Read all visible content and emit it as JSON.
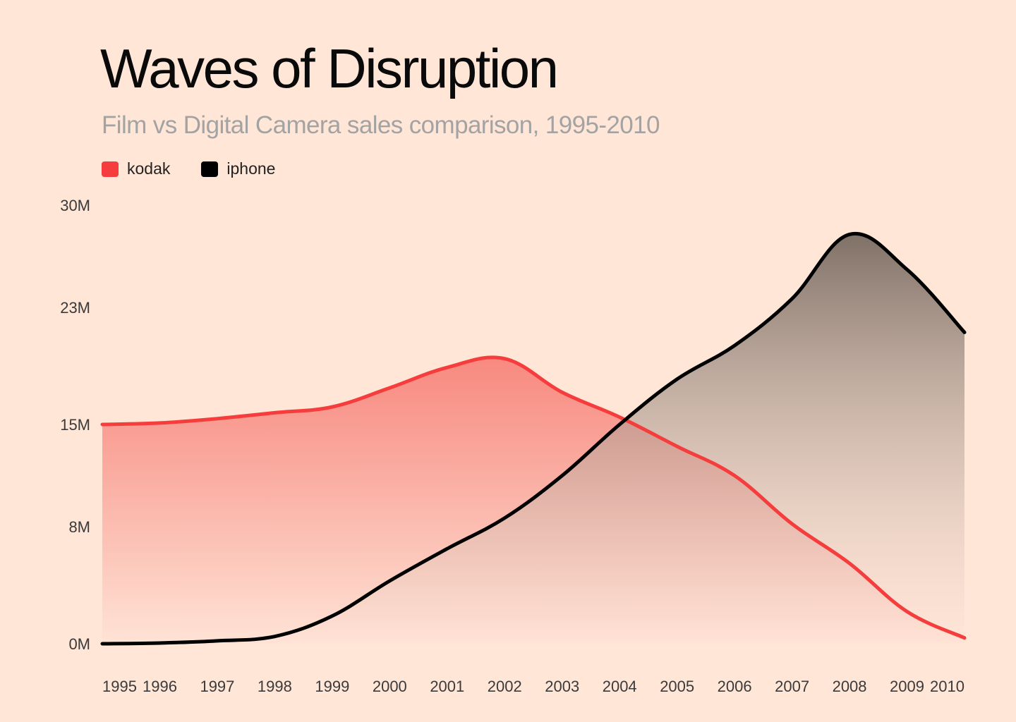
{
  "chart_data": {
    "type": "area",
    "title": "Waves of Disruption",
    "subtitle": "Film vs Digital Camera sales comparison, 1995-2010",
    "xlabel": "",
    "ylabel": "",
    "x": [
      1995,
      1996,
      1997,
      1998,
      1999,
      2000,
      2001,
      2002,
      2003,
      2004,
      2005,
      2006,
      2007,
      2008,
      2009,
      2010
    ],
    "x_tick_labels": [
      "1995",
      "1996",
      "1997",
      "1998",
      "1999",
      "2000",
      "2001",
      "2002",
      "2003",
      "2004",
      "2005",
      "2006",
      "2007",
      "2008",
      "2009",
      "2010"
    ],
    "y_tick_values": [
      0,
      8,
      15,
      23,
      30
    ],
    "y_tick_labels": [
      "0M",
      "8M",
      "15M",
      "23M",
      "30M"
    ],
    "ylim": [
      0,
      30
    ],
    "legend_position": "top-left",
    "grid": false,
    "series": [
      {
        "name": "kodak",
        "color": "#F53D3D",
        "values": [
          15.0,
          15.1,
          15.4,
          15.8,
          16.2,
          17.5,
          18.9,
          19.5,
          17.2,
          15.5,
          13.5,
          11.5,
          8.2,
          5.5,
          2.2,
          0.4
        ]
      },
      {
        "name": "iphone",
        "color": "#000000",
        "values": [
          0.0,
          0.05,
          0.2,
          0.5,
          1.9,
          4.3,
          6.5,
          8.6,
          11.5,
          15.0,
          18.1,
          20.4,
          23.6,
          28.0,
          25.6,
          21.3
        ]
      }
    ]
  }
}
